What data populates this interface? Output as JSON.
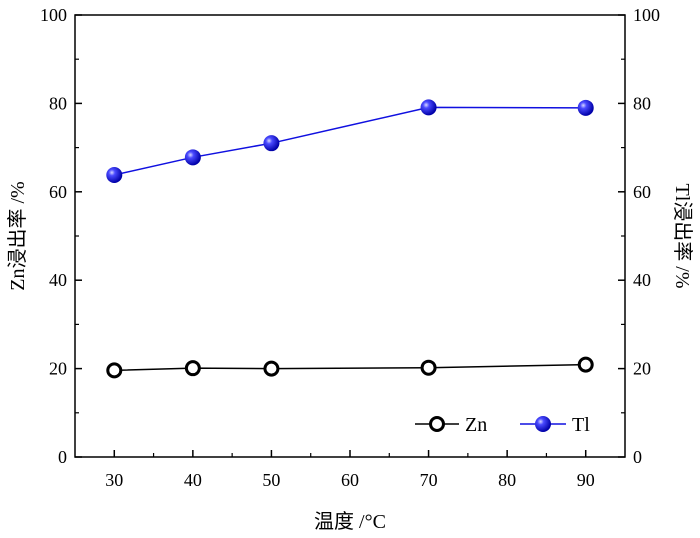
{
  "chart_data": {
    "type": "line",
    "xlabel": "温度 /°C",
    "ylabel_left": "Zn浸出率 /%",
    "ylabel_right": "Tl浸出率 /%",
    "xlim": [
      25,
      95
    ],
    "ylim": [
      0,
      100
    ],
    "x_ticks": [
      "30",
      "40",
      "50",
      "60",
      "70",
      "80",
      "90"
    ],
    "y_ticks": [
      "0",
      "20",
      "40",
      "60",
      "80",
      "100"
    ],
    "grid": false,
    "legend_position": "bottom-right",
    "series": [
      {
        "name": "Zn",
        "color": "#000000",
        "marker": "open-circle",
        "x": [
          30,
          40,
          50,
          70,
          90
        ],
        "y": [
          19.6,
          20.1,
          20.0,
          20.2,
          20.9
        ]
      },
      {
        "name": "Tl",
        "color": "#1010e0",
        "marker": "filled-sphere",
        "x": [
          30,
          40,
          50,
          70,
          90
        ],
        "y": [
          63.8,
          67.8,
          71.0,
          79.1,
          79.0
        ]
      }
    ]
  }
}
